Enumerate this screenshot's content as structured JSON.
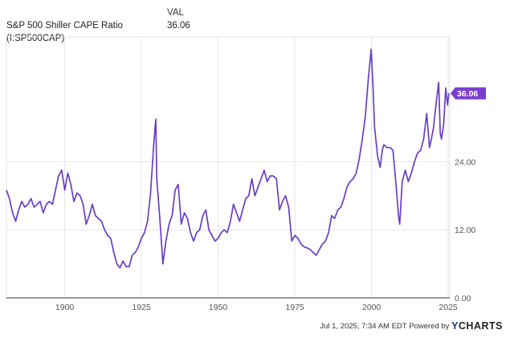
{
  "legend": {
    "header": "VAL",
    "series_name": "S&P 500 Shiller CAPE Ratio (I:SP500CAP)",
    "series_value": "36.06"
  },
  "footer": {
    "timestamp": "Jul 1, 2025, 7:34 AM EDT",
    "powered_by": "Powered by",
    "brand_y": "Y",
    "brand_rest": "CHARTS"
  },
  "colors": {
    "line": "#6a3ec4",
    "badge": "#7b3fd0",
    "grid": "#e6e6e6",
    "axis": "#333333"
  },
  "chart_data": {
    "type": "line",
    "title": "S&P 500 Shiller CAPE Ratio (I:SP500CAP)",
    "xlabel": "",
    "ylabel": "",
    "xlim": [
      1881,
      2025.5
    ],
    "ylim": [
      0,
      46
    ],
    "x_ticks": [
      1900,
      1925,
      1950,
      1975,
      2000,
      2025
    ],
    "y_ticks": [
      0,
      12,
      24
    ],
    "y_tick_labels": [
      "0.00",
      "12.00",
      "24.00"
    ],
    "last_value_label": "36.06",
    "grid": true,
    "series": [
      {
        "name": "S&P 500 Shiller CAPE Ratio",
        "x": [
          1881,
          1882,
          1883,
          1884,
          1885,
          1886,
          1887,
          1888,
          1889,
          1890,
          1891,
          1892,
          1893,
          1894,
          1895,
          1896,
          1897,
          1898,
          1899,
          1900,
          1901,
          1902,
          1903,
          1904,
          1905,
          1906,
          1907,
          1908,
          1909,
          1910,
          1911,
          1912,
          1913,
          1914,
          1915,
          1916,
          1917,
          1918,
          1919,
          1920,
          1921,
          1922,
          1923,
          1924,
          1925,
          1926,
          1927,
          1928,
          1929,
          1929.7,
          1930,
          1931,
          1932,
          1933,
          1934,
          1935,
          1936,
          1937,
          1938,
          1939,
          1940,
          1941,
          1942,
          1943,
          1944,
          1945,
          1946,
          1947,
          1948,
          1949,
          1950,
          1951,
          1952,
          1953,
          1954,
          1955,
          1956,
          1957,
          1958,
          1959,
          1960,
          1961,
          1962,
          1963,
          1964,
          1965,
          1966,
          1967,
          1968,
          1969,
          1970,
          1971,
          1972,
          1973,
          1974,
          1975,
          1976,
          1977,
          1978,
          1979,
          1980,
          1981,
          1982,
          1983,
          1984,
          1985,
          1986,
          1987,
          1988,
          1989,
          1990,
          1991,
          1992,
          1993,
          1994,
          1995,
          1996,
          1997,
          1998,
          1999,
          1999.9,
          2000.5,
          2001,
          2002,
          2002.8,
          2003.5,
          2004,
          2005,
          2006,
          2007,
          2008,
          2008.8,
          2009.2,
          2010,
          2011,
          2012,
          2013,
          2014,
          2015,
          2016,
          2017,
          2018,
          2018.9,
          2019.5,
          2020.2,
          2020.8,
          2021.9,
          2022.4,
          2022.8,
          2023.5,
          2024.2,
          2024.8,
          2025.2
        ],
        "values": [
          19.0,
          17.5,
          15.0,
          13.5,
          15.5,
          17.0,
          16.0,
          16.5,
          17.5,
          16.0,
          16.5,
          17.0,
          15.0,
          16.5,
          17.0,
          16.5,
          19.0,
          21.5,
          22.5,
          19.0,
          22.0,
          20.0,
          17.0,
          18.5,
          18.0,
          16.5,
          13.0,
          14.5,
          16.5,
          14.5,
          14.0,
          13.5,
          12.0,
          11.0,
          10.5,
          8.0,
          6.0,
          5.3,
          6.5,
          5.5,
          5.5,
          7.5,
          8.0,
          9.0,
          10.5,
          11.5,
          13.5,
          18.5,
          27.0,
          31.5,
          21.0,
          14.0,
          6.0,
          10.0,
          13.0,
          14.5,
          19.0,
          20.0,
          13.0,
          15.0,
          14.0,
          11.5,
          10.0,
          11.5,
          12.0,
          14.5,
          15.5,
          12.0,
          11.0,
          10.0,
          10.5,
          11.5,
          12.0,
          11.5,
          13.5,
          16.5,
          15.0,
          13.5,
          15.5,
          17.5,
          18.0,
          21.0,
          18.0,
          19.5,
          21.0,
          22.5,
          20.5,
          21.5,
          21.5,
          21.0,
          15.5,
          17.0,
          18.0,
          16.0,
          10.0,
          11.0,
          10.5,
          9.5,
          9.0,
          8.8,
          8.5,
          8.0,
          7.5,
          8.5,
          9.5,
          10.0,
          11.5,
          14.5,
          14.0,
          15.5,
          16.0,
          17.5,
          19.5,
          20.5,
          21.0,
          22.0,
          24.5,
          28.0,
          32.0,
          39.0,
          43.8,
          37.0,
          30.0,
          25.0,
          23.0,
          26.0,
          27.0,
          26.5,
          26.5,
          26.0,
          20.0,
          14.5,
          13.0,
          20.5,
          22.5,
          20.5,
          22.0,
          24.0,
          25.5,
          26.0,
          28.0,
          32.5,
          26.5,
          28.0,
          30.0,
          33.0,
          38.0,
          29.0,
          28.0,
          30.5,
          37.0,
          34.0,
          36.06
        ]
      }
    ]
  }
}
